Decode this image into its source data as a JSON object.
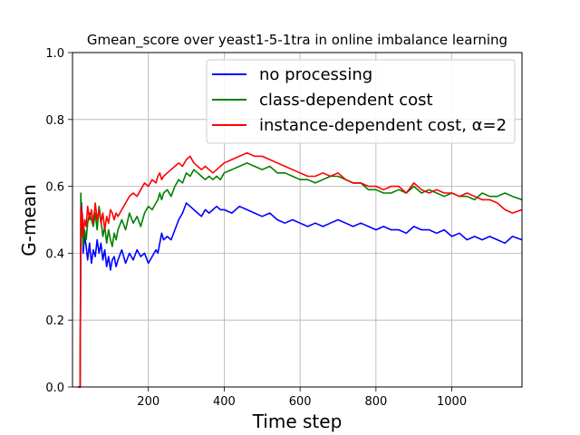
{
  "chart_data": {
    "type": "line",
    "title": "Gmean_score over yeast1-5-1tra in online imbalance learning",
    "xlabel": "Time step",
    "ylabel": "G-mean",
    "xlim": [
      0,
      1185
    ],
    "ylim": [
      0.0,
      1.0
    ],
    "xticks": [
      200,
      400,
      600,
      800,
      1000
    ],
    "xtick_labels": [
      "200",
      "400",
      "600",
      "800",
      "1000"
    ],
    "yticks": [
      0.0,
      0.2,
      0.4,
      0.6,
      0.8,
      1.0
    ],
    "ytick_labels": [
      "0.0",
      "0.2",
      "0.4",
      "0.6",
      "0.8",
      "1.0"
    ],
    "grid": true,
    "legend": "top-right",
    "series": [
      {
        "name": "no processing",
        "color": "#0000ff",
        "x": [
          15,
          20,
          22,
          24,
          26,
          28,
          32,
          36,
          40,
          45,
          50,
          55,
          60,
          65,
          70,
          75,
          80,
          85,
          90,
          95,
          100,
          105,
          110,
          115,
          120,
          130,
          140,
          150,
          160,
          170,
          180,
          190,
          200,
          210,
          220,
          225,
          230,
          235,
          240,
          250,
          260,
          270,
          280,
          290,
          300,
          310,
          320,
          330,
          340,
          350,
          360,
          370,
          380,
          390,
          400,
          420,
          440,
          460,
          480,
          500,
          520,
          540,
          560,
          580,
          600,
          620,
          640,
          660,
          680,
          700,
          720,
          740,
          760,
          780,
          800,
          820,
          840,
          860,
          880,
          900,
          920,
          940,
          960,
          980,
          1000,
          1020,
          1040,
          1060,
          1080,
          1100,
          1120,
          1140,
          1160,
          1185
        ],
        "y": [
          0.0,
          0.0,
          0.44,
          0.55,
          0.47,
          0.4,
          0.45,
          0.42,
          0.38,
          0.43,
          0.37,
          0.41,
          0.39,
          0.44,
          0.4,
          0.43,
          0.38,
          0.41,
          0.36,
          0.39,
          0.35,
          0.38,
          0.39,
          0.36,
          0.38,
          0.41,
          0.37,
          0.4,
          0.38,
          0.41,
          0.39,
          0.4,
          0.37,
          0.39,
          0.41,
          0.4,
          0.43,
          0.46,
          0.44,
          0.45,
          0.44,
          0.47,
          0.5,
          0.52,
          0.55,
          0.54,
          0.53,
          0.52,
          0.51,
          0.53,
          0.52,
          0.53,
          0.54,
          0.53,
          0.53,
          0.52,
          0.54,
          0.53,
          0.52,
          0.51,
          0.52,
          0.5,
          0.49,
          0.5,
          0.49,
          0.48,
          0.49,
          0.48,
          0.49,
          0.5,
          0.49,
          0.48,
          0.49,
          0.48,
          0.47,
          0.48,
          0.47,
          0.47,
          0.46,
          0.48,
          0.47,
          0.47,
          0.46,
          0.47,
          0.45,
          0.46,
          0.44,
          0.45,
          0.44,
          0.45,
          0.44,
          0.43,
          0.45,
          0.44
        ]
      },
      {
        "name": "class-dependent cost",
        "color": "#008000",
        "x": [
          15,
          20,
          22,
          24,
          26,
          28,
          32,
          36,
          40,
          45,
          50,
          55,
          60,
          65,
          70,
          75,
          80,
          85,
          90,
          95,
          100,
          105,
          110,
          115,
          120,
          130,
          140,
          150,
          160,
          170,
          180,
          190,
          200,
          210,
          220,
          225,
          230,
          235,
          240,
          250,
          260,
          270,
          280,
          290,
          300,
          310,
          320,
          330,
          340,
          350,
          360,
          370,
          380,
          390,
          400,
          420,
          440,
          460,
          480,
          500,
          520,
          540,
          560,
          580,
          600,
          620,
          640,
          660,
          680,
          700,
          720,
          740,
          760,
          780,
          800,
          820,
          840,
          860,
          880,
          900,
          920,
          940,
          960,
          980,
          1000,
          1020,
          1040,
          1060,
          1080,
          1100,
          1120,
          1140,
          1160,
          1185
        ],
        "y": [
          0.0,
          0.0,
          0.58,
          0.5,
          0.46,
          0.42,
          0.47,
          0.44,
          0.49,
          0.52,
          0.5,
          0.48,
          0.52,
          0.47,
          0.54,
          0.5,
          0.45,
          0.48,
          0.43,
          0.47,
          0.44,
          0.42,
          0.46,
          0.44,
          0.47,
          0.5,
          0.47,
          0.52,
          0.49,
          0.51,
          0.48,
          0.52,
          0.54,
          0.53,
          0.55,
          0.56,
          0.58,
          0.56,
          0.58,
          0.59,
          0.57,
          0.6,
          0.62,
          0.61,
          0.64,
          0.63,
          0.65,
          0.64,
          0.63,
          0.62,
          0.63,
          0.62,
          0.63,
          0.62,
          0.64,
          0.65,
          0.66,
          0.67,
          0.66,
          0.65,
          0.66,
          0.64,
          0.64,
          0.63,
          0.62,
          0.62,
          0.61,
          0.62,
          0.63,
          0.63,
          0.62,
          0.61,
          0.61,
          0.59,
          0.59,
          0.58,
          0.58,
          0.59,
          0.58,
          0.6,
          0.58,
          0.59,
          0.58,
          0.57,
          0.58,
          0.57,
          0.57,
          0.56,
          0.58,
          0.57,
          0.57,
          0.58,
          0.57,
          0.56
        ]
      },
      {
        "name": "instance-dependent cost, α=2",
        "color": "#ff0000",
        "x": [
          15,
          20,
          22,
          24,
          26,
          28,
          32,
          36,
          40,
          45,
          50,
          55,
          60,
          65,
          70,
          75,
          80,
          85,
          90,
          95,
          100,
          105,
          110,
          115,
          120,
          130,
          140,
          150,
          160,
          170,
          180,
          190,
          200,
          210,
          220,
          225,
          230,
          235,
          240,
          250,
          260,
          270,
          280,
          290,
          300,
          310,
          320,
          330,
          340,
          350,
          360,
          370,
          380,
          390,
          400,
          420,
          440,
          460,
          480,
          500,
          520,
          540,
          560,
          580,
          600,
          620,
          640,
          660,
          680,
          700,
          720,
          740,
          760,
          780,
          800,
          820,
          840,
          860,
          880,
          900,
          920,
          940,
          960,
          980,
          1000,
          1020,
          1040,
          1060,
          1080,
          1100,
          1120,
          1140,
          1160,
          1185
        ],
        "y": [
          0.0,
          0.0,
          0.54,
          0.48,
          0.52,
          0.45,
          0.5,
          0.48,
          0.54,
          0.5,
          0.53,
          0.49,
          0.55,
          0.5,
          0.53,
          0.49,
          0.52,
          0.47,
          0.51,
          0.49,
          0.53,
          0.52,
          0.5,
          0.52,
          0.51,
          0.53,
          0.55,
          0.57,
          0.58,
          0.57,
          0.59,
          0.61,
          0.6,
          0.62,
          0.61,
          0.63,
          0.64,
          0.62,
          0.63,
          0.64,
          0.65,
          0.66,
          0.67,
          0.66,
          0.68,
          0.69,
          0.67,
          0.66,
          0.65,
          0.66,
          0.65,
          0.64,
          0.65,
          0.66,
          0.67,
          0.68,
          0.69,
          0.7,
          0.69,
          0.69,
          0.68,
          0.67,
          0.66,
          0.65,
          0.64,
          0.63,
          0.63,
          0.64,
          0.63,
          0.64,
          0.62,
          0.61,
          0.61,
          0.6,
          0.6,
          0.59,
          0.6,
          0.6,
          0.58,
          0.61,
          0.59,
          0.58,
          0.59,
          0.58,
          0.58,
          0.57,
          0.58,
          0.57,
          0.56,
          0.56,
          0.55,
          0.53,
          0.52,
          0.53
        ]
      }
    ]
  }
}
